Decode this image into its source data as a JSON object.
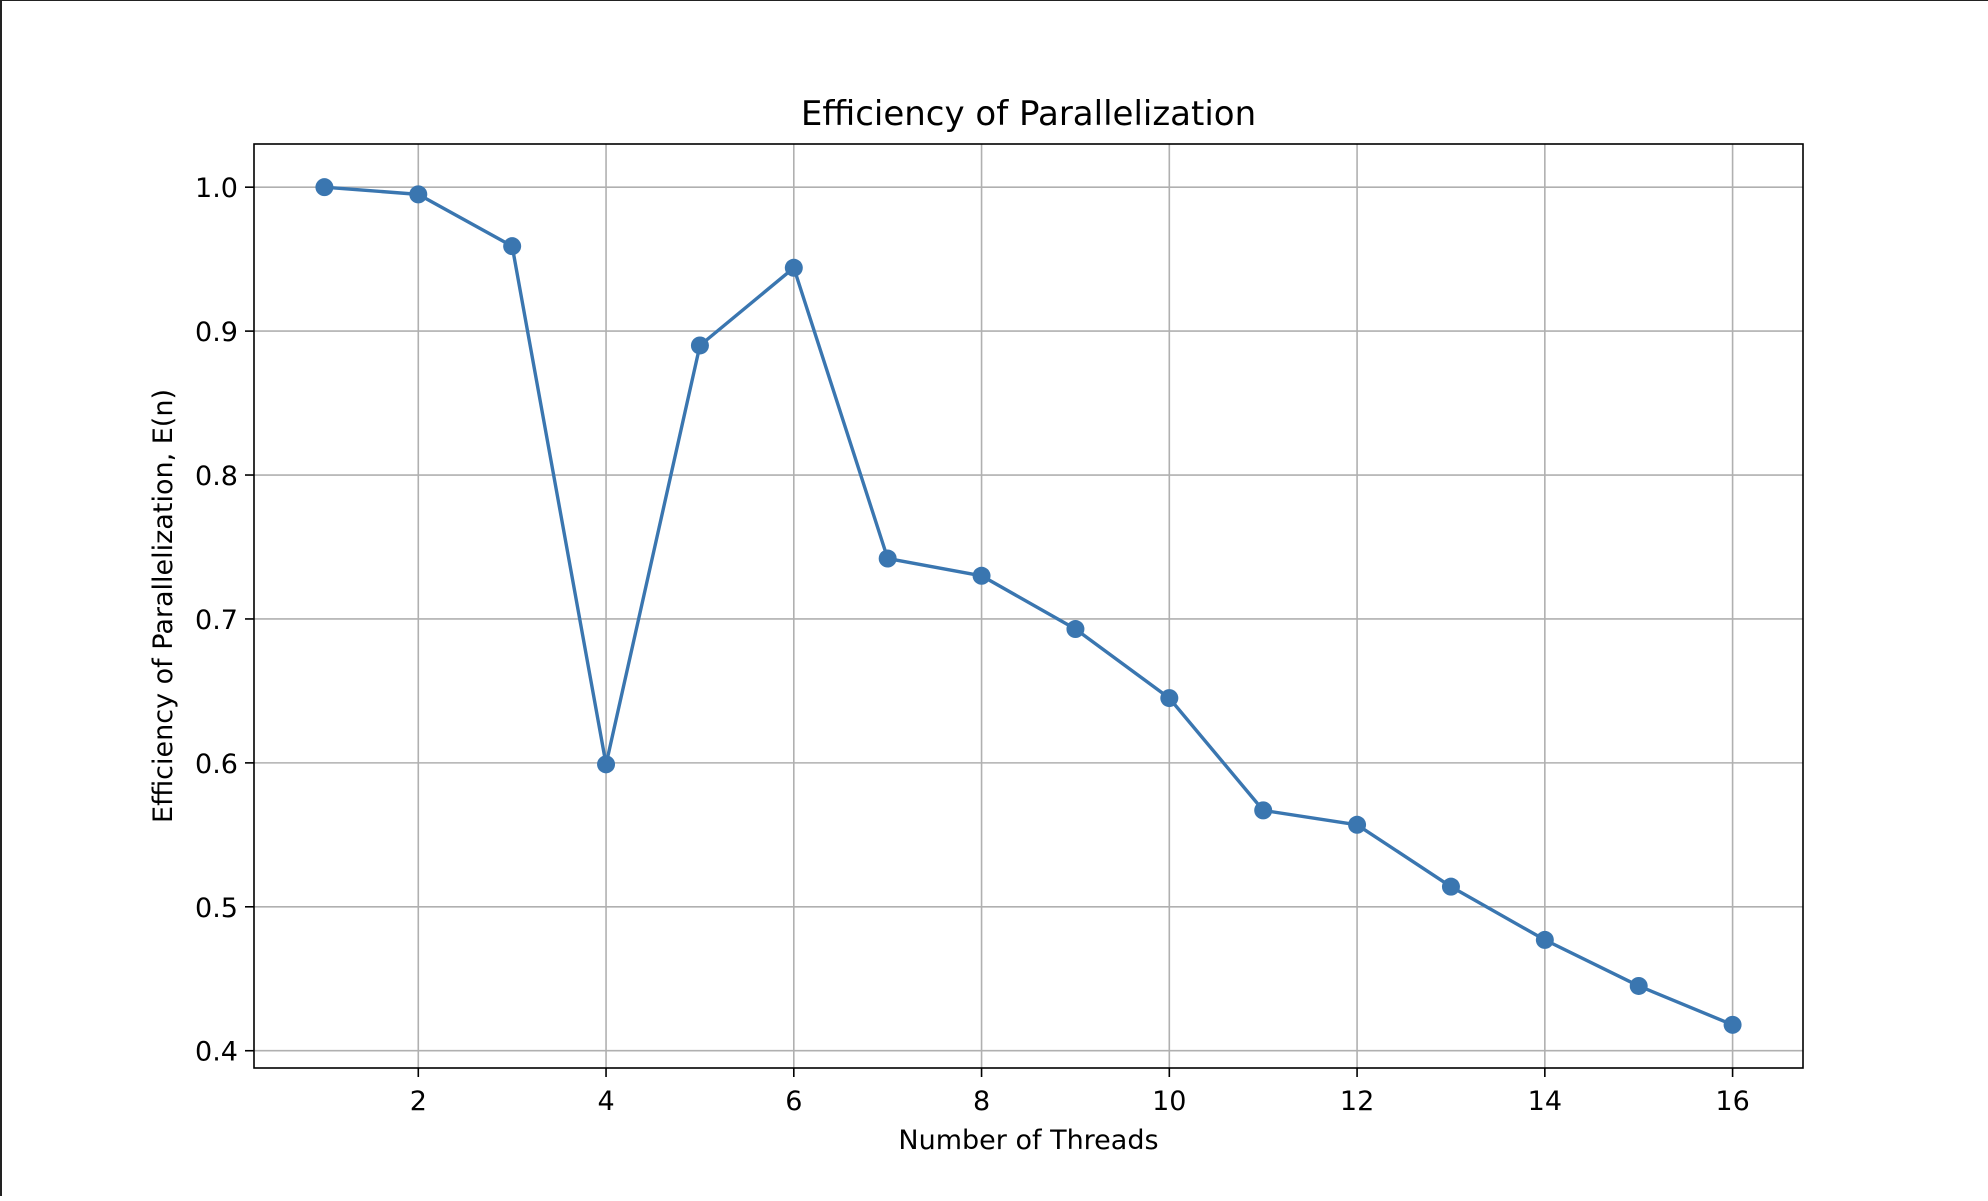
{
  "chart_data": {
    "type": "line",
    "title": "Efficiency of Parallelization",
    "xlabel": "Number of Threads",
    "ylabel": "Efficiency of Parallelization, E(n)",
    "xlim": [
      0.25,
      16.75
    ],
    "ylim": [
      0.388,
      1.03
    ],
    "grid": true,
    "xticks": [
      2,
      4,
      6,
      8,
      10,
      12,
      14,
      16
    ],
    "yticks": [
      0.4,
      0.5,
      0.6,
      0.7,
      0.8,
      0.9,
      1.0
    ],
    "ytick_labels": [
      "0.4",
      "0.5",
      "0.6",
      "0.7",
      "0.8",
      "0.9",
      "1.0"
    ],
    "series": [
      {
        "color": "#3a76b0",
        "marker": "circle",
        "x": [
          1,
          2,
          3,
          4,
          5,
          6,
          7,
          8,
          9,
          10,
          11,
          12,
          13,
          14,
          15,
          16
        ],
        "y": [
          1.0,
          0.995,
          0.959,
          0.599,
          0.89,
          0.944,
          0.742,
          0.73,
          0.693,
          0.645,
          0.567,
          0.557,
          0.514,
          0.477,
          0.445,
          0.418
        ]
      }
    ]
  }
}
